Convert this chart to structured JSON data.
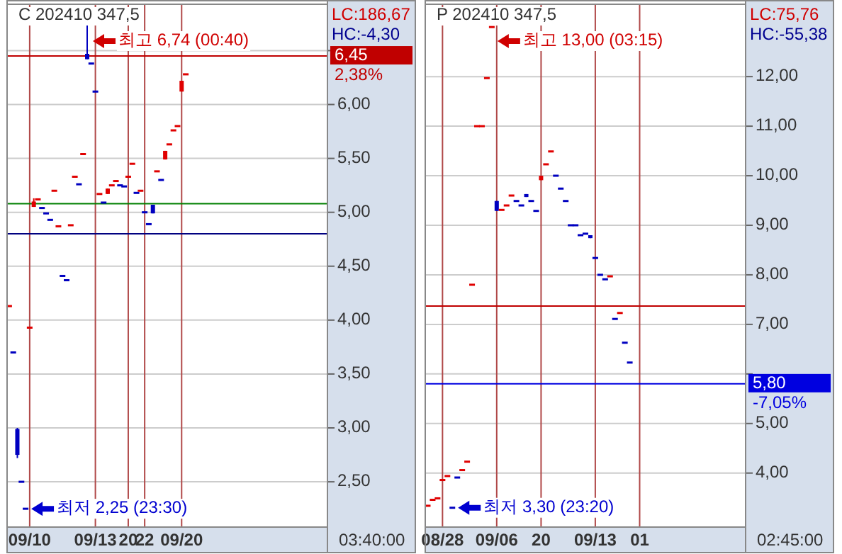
{
  "chart_data": [
    {
      "type": "candlestick",
      "title": "C 202410 347,5",
      "categories": [
        null,
        null,
        null,
        null,
        null,
        "09/10",
        null,
        null,
        null,
        null,
        null,
        null,
        null,
        null,
        null,
        null,
        null,
        null,
        null,
        null,
        null,
        "09/13",
        null,
        null,
        null,
        null,
        null,
        null,
        null,
        "20",
        null,
        null,
        null,
        "22",
        null,
        null,
        null,
        null,
        null,
        null,
        null,
        null,
        "09/20",
        null,
        null,
        null,
        null,
        null,
        null,
        null,
        null,
        null,
        null,
        null,
        null,
        null,
        null,
        null,
        null,
        null,
        null,
        null,
        null,
        null,
        null,
        null,
        null,
        null,
        null,
        null,
        null,
        null,
        null,
        null,
        null,
        null,
        null,
        null
      ],
      "ohlc": [
        [
          4.13,
          4.13,
          4.13,
          4.13
        ],
        [
          3.7,
          3.7,
          3.7,
          3.7
        ],
        [
          2.99,
          3.0,
          2.72,
          2.75
        ],
        [
          2.5,
          2.5,
          2.5,
          2.5
        ],
        [
          2.25,
          2.25,
          2.25,
          2.25
        ],
        [
          3.93,
          3.93,
          3.93,
          3.93
        ],
        [
          5.05,
          5.13,
          5.05,
          5.1
        ],
        [
          5.12,
          5.12,
          5.12,
          5.12
        ],
        [
          5.04,
          5.04,
          5.04,
          5.04
        ],
        [
          4.99,
          4.99,
          4.99,
          4.99
        ],
        [
          4.93,
          4.93,
          4.93,
          4.93
        ],
        [
          5.2,
          5.2,
          5.2,
          5.2
        ],
        [
          4.87,
          4.87,
          4.87,
          4.87
        ],
        [
          4.41,
          4.41,
          4.41,
          4.41
        ],
        [
          4.37,
          4.37,
          4.37,
          4.37
        ],
        [
          4.88,
          4.88,
          4.88,
          4.88
        ],
        [
          5.33,
          5.33,
          5.33,
          5.33
        ],
        [
          5.26,
          5.26,
          5.26,
          5.26
        ],
        [
          5.54,
          5.54,
          5.54,
          5.54
        ],
        [
          6.47,
          6.74,
          6.42,
          6.42
        ],
        [
          6.38,
          6.38,
          6.38,
          6.38
        ],
        [
          6.12,
          6.12,
          6.12,
          6.12
        ],
        [
          5.17,
          5.17,
          5.17,
          5.17
        ],
        [
          5.09,
          5.09,
          5.09,
          5.09
        ],
        [
          5.17,
          5.22,
          5.17,
          5.22
        ],
        [
          5.25,
          5.25,
          5.25,
          5.25
        ],
        [
          5.29,
          5.29,
          5.29,
          5.29
        ],
        [
          5.25,
          5.25,
          5.25,
          5.25
        ],
        [
          5.24,
          5.24,
          5.24,
          5.24
        ],
        [
          5.33,
          5.33,
          5.33,
          5.33
        ],
        [
          5.45,
          5.45,
          5.45,
          5.45
        ],
        [
          5.18,
          5.18,
          5.18,
          5.18
        ],
        [
          5.2,
          5.2,
          5.2,
          5.2
        ],
        [
          5.0,
          5.0,
          5.0,
          5.0
        ],
        [
          4.89,
          4.89,
          4.89,
          4.89
        ],
        [
          5.07,
          5.07,
          4.99,
          4.99
        ],
        [
          5.38,
          5.38,
          5.38,
          5.38
        ],
        [
          5.3,
          5.3,
          5.3,
          5.3
        ],
        [
          5.49,
          5.57,
          5.49,
          5.57
        ],
        [
          5.63,
          5.63,
          5.63,
          5.63
        ],
        [
          5.76,
          5.76,
          5.76,
          5.76
        ],
        [
          5.8,
          5.8,
          5.8,
          5.8
        ],
        [
          6.12,
          6.22,
          6.12,
          6.22
        ],
        [
          6.28,
          6.28,
          6.28,
          6.28
        ],
        null,
        null,
        null,
        null,
        null,
        null,
        null,
        null,
        null,
        null,
        null,
        null,
        null,
        null,
        null,
        null,
        null,
        null,
        null,
        null,
        null,
        null,
        null,
        null,
        null,
        null,
        null,
        null,
        null,
        null,
        null,
        null,
        null,
        null
      ],
      "colors": [
        "#e00000",
        "#0000c0",
        "#0000c0",
        "#0000c0",
        "#0000c0",
        "#e00000",
        "#e00000",
        "#e00000",
        "#0000c0",
        "#0000c0",
        "#0000c0",
        "#e00000",
        "#e00000",
        "#0000c0",
        "#0000c0",
        "#e00000",
        "#e00000",
        "#0000c0",
        "#e00000",
        "#0000c0",
        "#0000c0",
        "#0000c0",
        "#e00000",
        "#0000c0",
        "#e00000",
        "#e00000",
        "#e00000",
        "#0000c0",
        "#0000c0",
        "#e00000",
        "#e00000",
        "#0000c0",
        "#e00000",
        "#0000c0",
        "#0000c0",
        "#0000c0",
        "#e00000",
        "#0000c0",
        "#e00000",
        "#e00000",
        "#e00000",
        "#e00000",
        "#e00000",
        "#e00000",
        null,
        null,
        null,
        null,
        null,
        null,
        null,
        null,
        null,
        null,
        null,
        null,
        null,
        null,
        null,
        null,
        null,
        null,
        null,
        null,
        null,
        null,
        null,
        null,
        null,
        null,
        null,
        null,
        null,
        null,
        null,
        null,
        null,
        null
      ],
      "ylim": [
        2.08,
        6.93
      ],
      "yticks": [
        {
          "value": 2.5,
          "label": "2,50"
        },
        {
          "value": 3,
          "label": "3,00"
        },
        {
          "value": 3.5,
          "label": "3,50"
        },
        {
          "value": 4,
          "label": "4,00"
        },
        {
          "value": 4.5,
          "label": "4,50"
        },
        {
          "value": 5,
          "label": "5,00"
        },
        {
          "value": 5.5,
          "label": "5,50"
        },
        {
          "value": 6,
          "label": "6,00"
        },
        {
          "value": 6.5,
          "label": null
        }
      ],
      "grid": true,
      "ref_lines": [
        {
          "axis": "y",
          "value": 6.45,
          "label": "6,45",
          "color": "#c00000"
        },
        {
          "axis": "y",
          "value": 5.08,
          "color": "#008000"
        },
        {
          "axis": "y",
          "value": 4.8,
          "color": "#000080"
        }
      ],
      "annotations": [
        "LC:186,67",
        "HC:-4,30",
        "2,38%",
        "03:40:00",
        "최고 6,74 (00:40)",
        "최저 2,25 (23:30)"
      ]
    },
    {
      "type": "candlestick",
      "title": "P 202410 347,5",
      "categories": [
        null,
        null,
        null,
        "08/28",
        null,
        null,
        null,
        null,
        null,
        null,
        null,
        null,
        null,
        null,
        "09/06",
        null,
        null,
        null,
        null,
        null,
        null,
        null,
        null,
        "20",
        null,
        null,
        null,
        null,
        null,
        null,
        null,
        null,
        null,
        null,
        "09/13",
        null,
        null,
        null,
        null,
        null,
        null,
        null,
        null,
        "01",
        null,
        null,
        null,
        null,
        null,
        null,
        null,
        null,
        null,
        null,
        null,
        null,
        null,
        null,
        null,
        null,
        null,
        null,
        null,
        null,
        null
      ],
      "ohlc": [
        [
          3.34,
          3.34,
          3.34,
          3.34
        ],
        [
          3.46,
          3.46,
          3.46,
          3.46
        ],
        [
          3.49,
          3.49,
          3.49,
          3.49
        ],
        [
          3.86,
          3.86,
          3.86,
          3.86
        ],
        [
          3.94,
          3.94,
          3.94,
          3.94
        ],
        [
          3.3,
          3.3,
          3.3,
          3.3
        ],
        [
          3.91,
          3.91,
          3.91,
          3.91
        ],
        [
          4.06,
          4.06,
          4.06,
          4.06
        ],
        [
          4.23,
          4.23,
          4.23,
          4.23
        ],
        [
          7.8,
          7.8,
          7.8,
          7.8
        ],
        [
          11.0,
          11.0,
          11.0,
          11.0
        ],
        [
          11.0,
          11.0,
          11.0,
          11.0
        ],
        [
          11.97,
          11.97,
          11.97,
          11.97
        ],
        [
          13.0,
          13.0,
          13.0,
          13.0
        ],
        [
          9.49,
          9.49,
          9.29,
          9.29
        ],
        [
          9.31,
          9.31,
          9.31,
          9.31
        ],
        [
          9.4,
          9.4,
          9.4,
          9.4
        ],
        [
          9.6,
          9.6,
          9.6,
          9.6
        ],
        [
          9.49,
          9.49,
          9.49,
          9.49
        ],
        [
          9.4,
          9.4,
          9.4,
          9.4
        ],
        [
          9.63,
          9.63,
          9.57,
          9.57
        ],
        [
          9.49,
          9.49,
          9.49,
          9.49
        ],
        [
          9.29,
          9.29,
          9.29,
          9.29
        ],
        [
          9.91,
          10.0,
          9.91,
          10.0
        ],
        [
          10.23,
          10.23,
          10.23,
          10.23
        ],
        [
          10.49,
          10.49,
          10.49,
          10.49
        ],
        [
          10.0,
          10.0,
          10.0,
          10.0
        ],
        [
          9.74,
          9.74,
          9.74,
          9.74
        ],
        [
          9.49,
          9.49,
          9.49,
          9.49
        ],
        [
          9.0,
          9.0,
          9.0,
          9.0
        ],
        [
          9.0,
          9.0,
          9.0,
          9.0
        ],
        [
          8.8,
          8.8,
          8.8,
          8.8
        ],
        [
          8.83,
          8.83,
          8.83,
          8.83
        ],
        [
          8.8,
          8.8,
          8.74,
          8.74
        ],
        [
          8.34,
          8.34,
          8.34,
          8.34
        ],
        [
          8.0,
          8.0,
          8.0,
          8.0
        ],
        [
          7.91,
          7.91,
          7.91,
          7.91
        ],
        [
          7.97,
          7.97,
          7.97,
          7.97
        ],
        [
          7.11,
          7.11,
          7.11,
          7.11
        ],
        [
          7.23,
          7.23,
          7.23,
          7.23
        ],
        [
          6.63,
          6.63,
          6.63,
          6.63
        ],
        [
          6.23,
          6.23,
          6.23,
          6.23
        ],
        null,
        null,
        null,
        null,
        null,
        null,
        null,
        null,
        null,
        null,
        null,
        null,
        null,
        null,
        null,
        null,
        null,
        null,
        null,
        null,
        null,
        null,
        null
      ],
      "colors": [
        "#e00000",
        "#e00000",
        "#e00000",
        "#e00000",
        "#e00000",
        "#0000c0",
        "#0000c0",
        "#e00000",
        "#e00000",
        "#e00000",
        "#e00000",
        "#e00000",
        "#e00000",
        "#e00000",
        "#0000c0",
        "#e00000",
        "#e00000",
        "#e00000",
        "#0000c0",
        "#0000c0",
        "#0000c0",
        "#0000c0",
        "#0000c0",
        "#e00000",
        "#e00000",
        "#e00000",
        "#0000c0",
        "#0000c0",
        "#0000c0",
        "#0000c0",
        "#0000c0",
        "#0000c0",
        "#0000c0",
        "#0000c0",
        "#0000c0",
        "#0000c0",
        "#0000c0",
        "#e00000",
        "#0000c0",
        "#e00000",
        "#0000c0",
        "#0000c0",
        null,
        null,
        null,
        null,
        null,
        null,
        null,
        null,
        null,
        null,
        null,
        null,
        null,
        null,
        null,
        null,
        null,
        null,
        null,
        null,
        null,
        null,
        null
      ],
      "ylim": [
        2.91,
        13.46
      ],
      "yticks": [
        {
          "value": 4,
          "label": "4,00"
        },
        {
          "value": 5,
          "label": "5,00"
        },
        {
          "value": 6,
          "label": null
        },
        {
          "value": 7,
          "label": "7,00"
        },
        {
          "value": 8,
          "label": "8,00"
        },
        {
          "value": 9,
          "label": "9,00"
        },
        {
          "value": 10,
          "label": "10,00"
        },
        {
          "value": 11,
          "label": "11,00"
        },
        {
          "value": 12,
          "label": "12,00"
        }
      ],
      "grid": true,
      "ref_lines": [
        {
          "axis": "y",
          "value": 5.8,
          "label": "5,80",
          "color": "#0000e0"
        },
        {
          "axis": "y",
          "value": 7.37,
          "color": "#c00000"
        }
      ],
      "annotations": [
        "LC:75,76",
        "HC:-55,38",
        "-7,05%",
        "02:45:00",
        "최고 13,00 (03:15)",
        "최저 3,30 (23:20)"
      ]
    }
  ]
}
